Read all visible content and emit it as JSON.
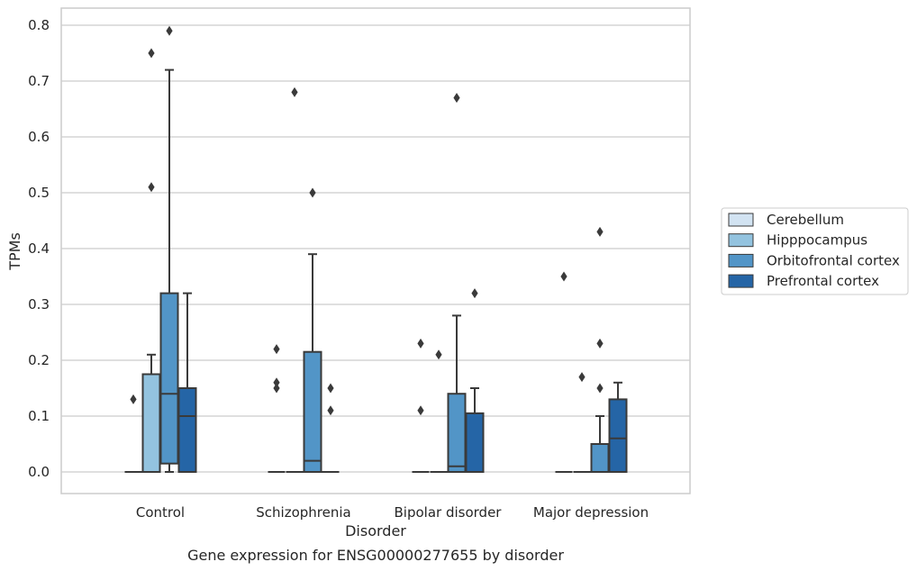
{
  "chart_data": {
    "type": "box",
    "caption": "Gene expression for ENSG00000277655 by disorder",
    "xlabel": "Disorder",
    "ylabel": "TPMs",
    "ylim": [
      -0.04,
      0.83
    ],
    "yticks": [
      0.0,
      0.1,
      0.2,
      0.3,
      0.4,
      0.5,
      0.6,
      0.7,
      0.8
    ],
    "ytick_labels": [
      "0.0",
      "0.1",
      "0.2",
      "0.3",
      "0.4",
      "0.5",
      "0.6",
      "0.7",
      "0.8"
    ],
    "grid": "horizontal",
    "legend_position": "right",
    "categories": [
      "Control",
      "Schizophrenia",
      "Bipolar disorder",
      "Major depression"
    ],
    "series": [
      {
        "name": "Cerebellum",
        "color": "#d2e3f2",
        "boxes": [
          {
            "q1": 0,
            "median": 0,
            "q3": 0,
            "whisker_low": 0,
            "whisker_high": 0,
            "fliers": [
              0.13
            ]
          },
          {
            "q1": 0,
            "median": 0,
            "q3": 0,
            "whisker_low": 0,
            "whisker_high": 0,
            "fliers": [
              0.15,
              0.16,
              0.22
            ]
          },
          {
            "q1": 0,
            "median": 0,
            "q3": 0,
            "whisker_low": 0,
            "whisker_high": 0,
            "fliers": [
              0.11,
              0.23
            ]
          },
          {
            "q1": 0,
            "median": 0,
            "q3": 0,
            "whisker_low": 0,
            "whisker_high": 0,
            "fliers": [
              0.35
            ]
          }
        ]
      },
      {
        "name": "Hipppocampus",
        "color": "#93c3df",
        "boxes": [
          {
            "q1": 0,
            "median": 0,
            "q3": 0.175,
            "whisker_low": 0,
            "whisker_high": 0.21,
            "fliers": [
              0.51,
              0.75
            ]
          },
          {
            "q1": 0,
            "median": 0,
            "q3": 0,
            "whisker_low": 0,
            "whisker_high": 0,
            "fliers": [
              0.68
            ]
          },
          {
            "q1": 0,
            "median": 0,
            "q3": 0,
            "whisker_low": 0,
            "whisker_high": 0,
            "fliers": [
              0.21
            ]
          },
          {
            "q1": 0,
            "median": 0,
            "q3": 0,
            "whisker_low": 0,
            "whisker_high": 0,
            "fliers": [
              0.17
            ]
          }
        ]
      },
      {
        "name": "Orbitofrontal cortex",
        "color": "#5295c7",
        "boxes": [
          {
            "q1": 0.015,
            "median": 0.14,
            "q3": 0.32,
            "whisker_low": 0,
            "whisker_high": 0.72,
            "fliers": [
              0.79
            ]
          },
          {
            "q1": 0,
            "median": 0.02,
            "q3": 0.215,
            "whisker_low": 0,
            "whisker_high": 0.39,
            "fliers": [
              0.5
            ]
          },
          {
            "q1": 0,
            "median": 0.01,
            "q3": 0.14,
            "whisker_low": 0,
            "whisker_high": 0.28,
            "fliers": [
              0.67
            ]
          },
          {
            "q1": 0,
            "median": 0,
            "q3": 0.05,
            "whisker_low": 0,
            "whisker_high": 0.1,
            "fliers": [
              0.15,
              0.23,
              0.43
            ]
          }
        ]
      },
      {
        "name": "Prefrontal cortex",
        "color": "#2565a6",
        "boxes": [
          {
            "q1": 0,
            "median": 0.1,
            "q3": 0.15,
            "whisker_low": 0,
            "whisker_high": 0.32,
            "fliers": []
          },
          {
            "q1": 0,
            "median": 0,
            "q3": 0,
            "whisker_low": 0,
            "whisker_high": 0,
            "fliers": [
              0.11,
              0.15
            ]
          },
          {
            "q1": 0,
            "median": 0,
            "q3": 0.105,
            "whisker_low": 0,
            "whisker_high": 0.15,
            "fliers": [
              0.32
            ]
          },
          {
            "q1": 0,
            "median": 0.06,
            "q3": 0.13,
            "whisker_low": 0,
            "whisker_high": 0.16,
            "fliers": []
          }
        ]
      }
    ]
  }
}
